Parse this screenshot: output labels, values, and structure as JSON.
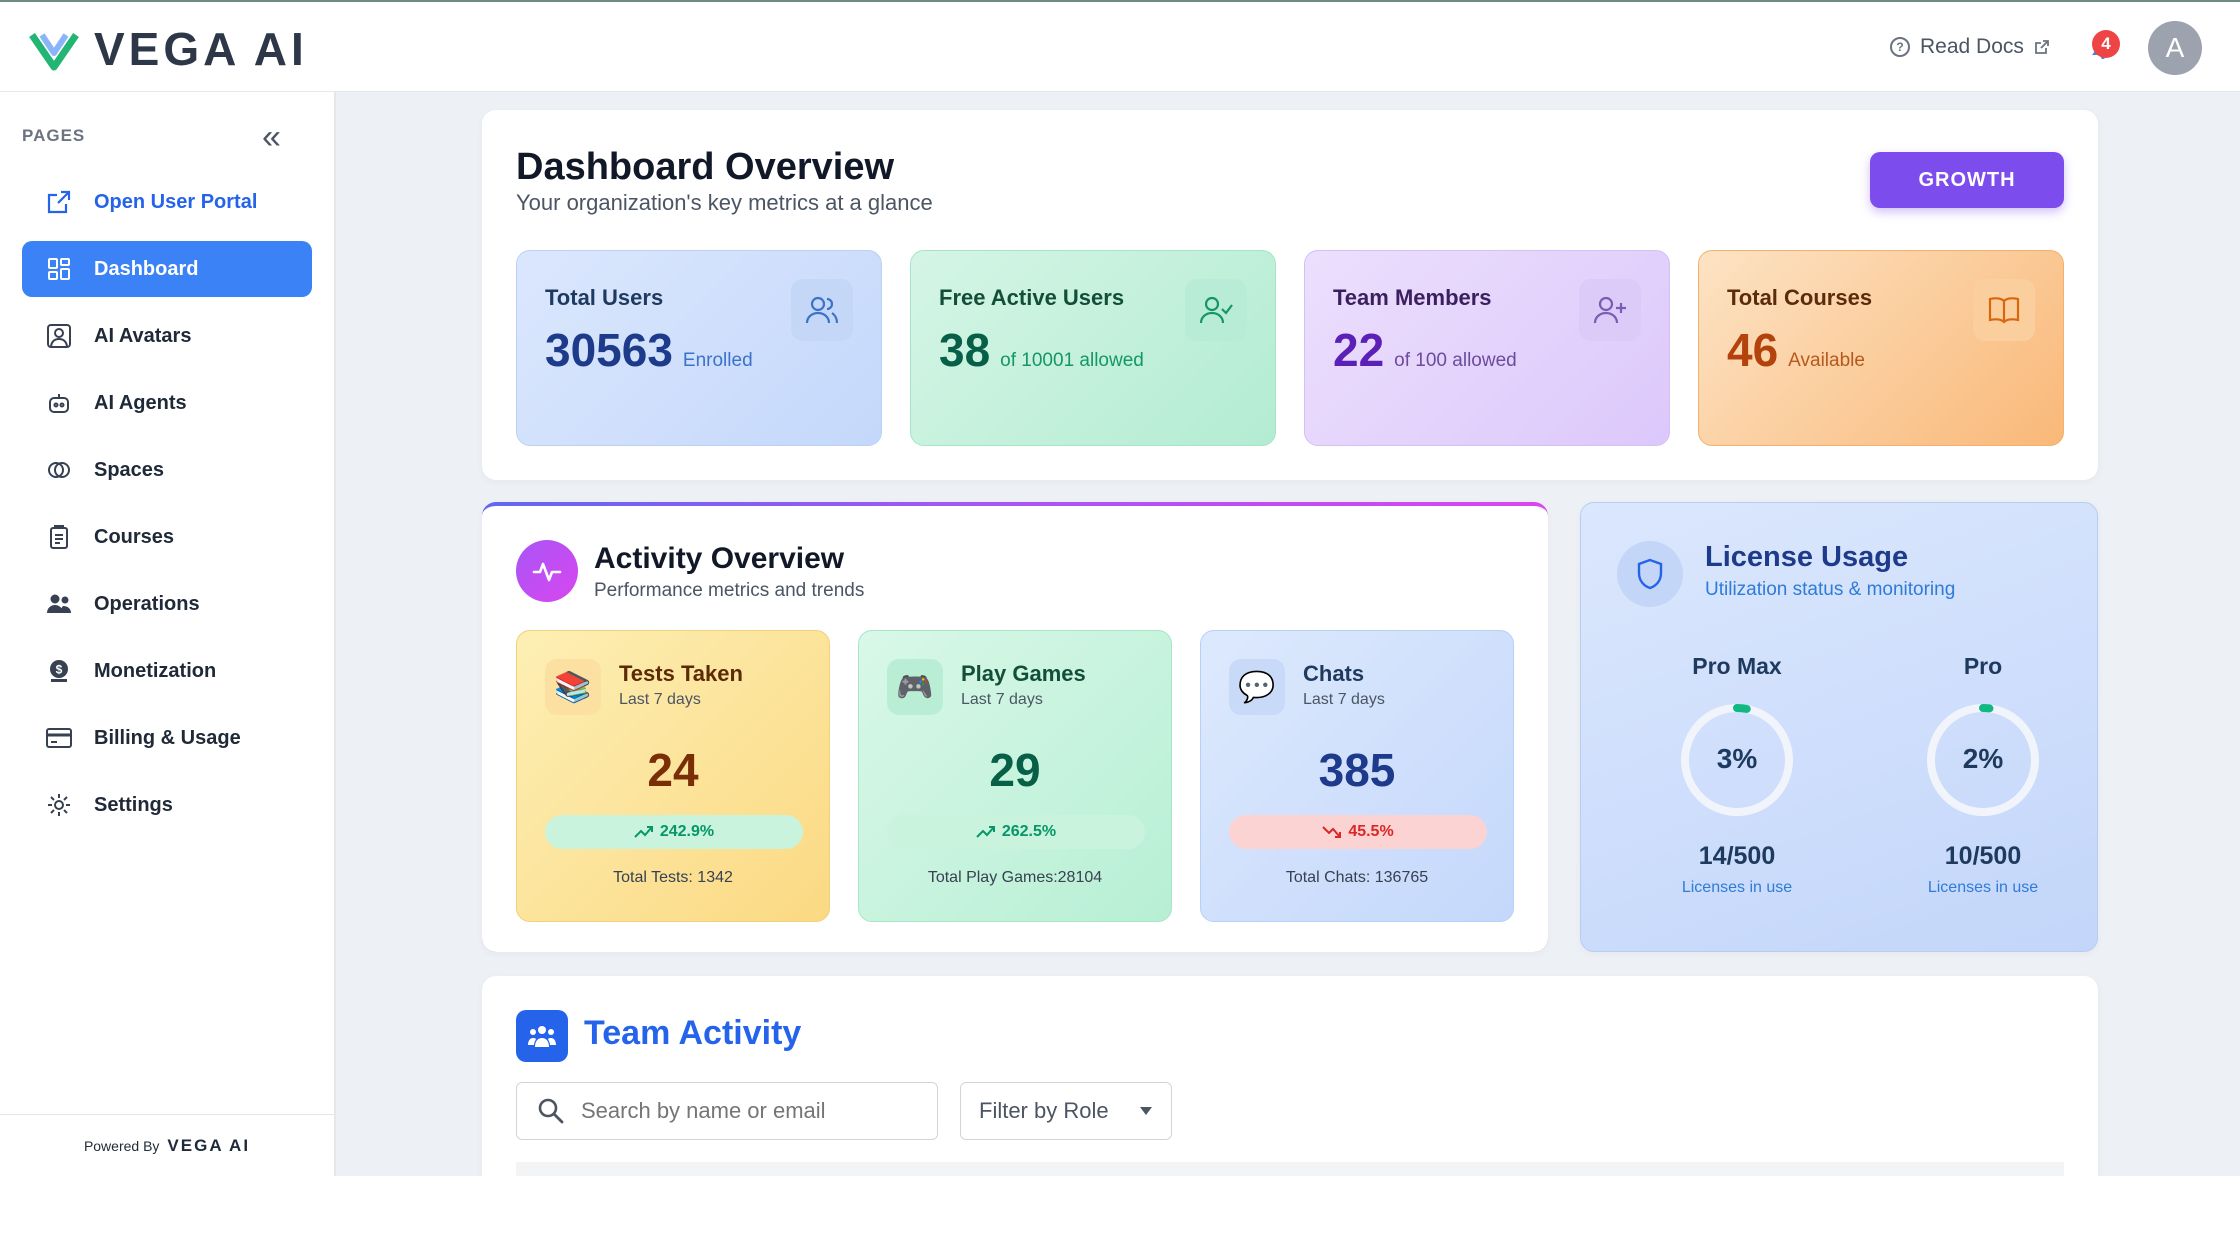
{
  "header": {
    "brand": "VEGA AI",
    "read_docs": "Read Docs",
    "notification_count": "4",
    "avatar_initial": "A"
  },
  "sidebar": {
    "section_label": "PAGES",
    "items": [
      {
        "label": "Open User Portal",
        "icon": "external-link-icon"
      },
      {
        "label": "Dashboard",
        "icon": "grid-icon"
      },
      {
        "label": "AI Avatars",
        "icon": "avatar-icon"
      },
      {
        "label": "AI Agents",
        "icon": "robot-icon"
      },
      {
        "label": "Spaces",
        "icon": "spaces-icon"
      },
      {
        "label": "Courses",
        "icon": "clipboard-icon"
      },
      {
        "label": "Operations",
        "icon": "users-icon"
      },
      {
        "label": "Monetization",
        "icon": "dollar-icon"
      },
      {
        "label": "Billing & Usage",
        "icon": "credit-card-icon"
      },
      {
        "label": "Settings",
        "icon": "gear-icon"
      }
    ],
    "powered_by": "Powered By",
    "powered_brand": "VEGA AI"
  },
  "overview": {
    "title": "Dashboard Overview",
    "subtitle": "Your organization's key metrics at a glance",
    "plan_button": "GROWTH",
    "stats": [
      {
        "label": "Total Users",
        "value": "30563",
        "unit": "Enrolled",
        "icon": "users-icon"
      },
      {
        "label": "Free Active Users",
        "value": "38",
        "unit": "of 10001 allowed",
        "icon": "user-check-icon"
      },
      {
        "label": "Team Members",
        "value": "22",
        "unit": "of 100 allowed",
        "icon": "user-plus-icon"
      },
      {
        "label": "Total Courses",
        "value": "46",
        "unit": "Available",
        "icon": "book-icon"
      }
    ]
  },
  "activity": {
    "title": "Activity Overview",
    "subtitle": "Performance metrics and trends",
    "metrics": [
      {
        "title": "Tests Taken",
        "period": "Last 7 days",
        "value": "24",
        "change": "242.9%",
        "trend": "up",
        "total": "Total Tests: 1342",
        "icon": "books-icon"
      },
      {
        "title": "Play Games",
        "period": "Last 7 days",
        "value": "29",
        "change": "262.5%",
        "trend": "up",
        "total": "Total Play Games:28104",
        "icon": "gamepad-icon"
      },
      {
        "title": "Chats",
        "period": "Last 7 days",
        "value": "385",
        "change": "45.5%",
        "trend": "down",
        "total": "Total Chats: 136765",
        "icon": "chat-bubble-icon"
      }
    ]
  },
  "license": {
    "title": "License Usage",
    "subtitle": "Utilization status & monitoring",
    "plans": [
      {
        "name": "Pro Max",
        "percent": "3%",
        "fraction": 0.03,
        "count": "14/500",
        "caption": "Licenses in use"
      },
      {
        "name": "Pro",
        "percent": "2%",
        "fraction": 0.02,
        "count": "10/500",
        "caption": "Licenses in use"
      }
    ]
  },
  "team": {
    "title": "Team Activity",
    "search_placeholder": "Search by name or email",
    "filter_label": "Filter by Role"
  },
  "colors": {
    "primary": "#3b82f6",
    "growth": "#7c4dec",
    "gauge": "#10b981"
  }
}
